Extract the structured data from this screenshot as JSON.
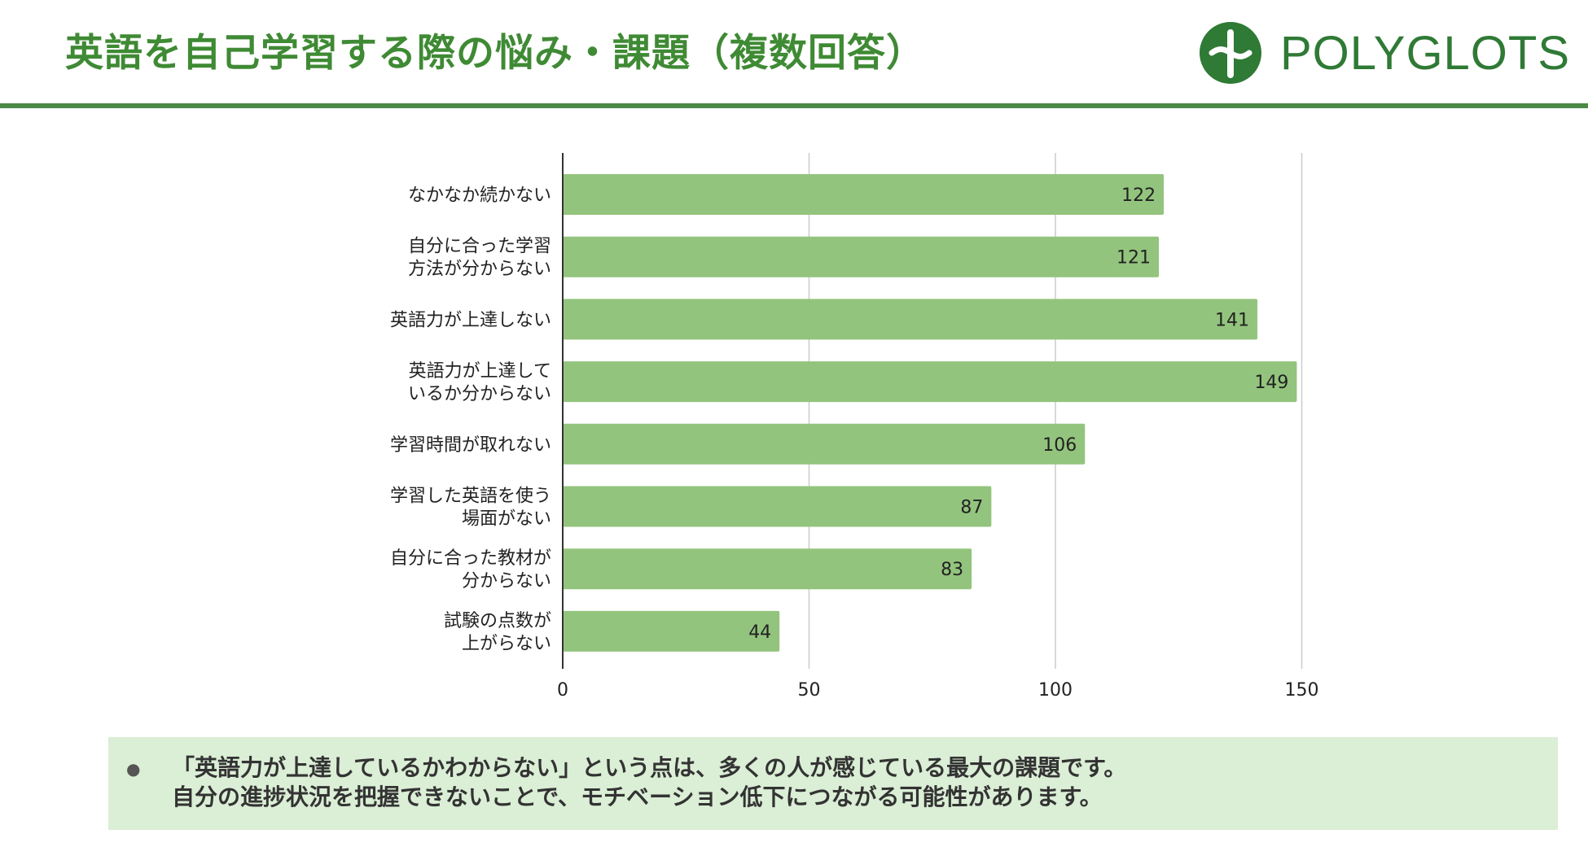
{
  "page": {
    "title": "英語を自己学習する際の悩み・課題（複数回答）",
    "logo_text": "POLYGLOTS",
    "colors": {
      "accent": "#3f8a34",
      "bar": "#93c47d",
      "note_bg": "#dbeed6",
      "rule": "#4a8a45"
    }
  },
  "chart_data": {
    "type": "bar",
    "orientation": "horizontal",
    "categories": [
      [
        "なかなか続かない"
      ],
      [
        "自分に合った学習",
        "方法が分からない"
      ],
      [
        "英語力が上達しない"
      ],
      [
        "英語力が上達して",
        "いるか分からない"
      ],
      [
        "学習時間が取れない"
      ],
      [
        "学習した英語を使う",
        "場面がない"
      ],
      [
        "自分に合った教材が",
        "分からない"
      ],
      [
        "試験の点数が",
        "上がらない"
      ]
    ],
    "values": [
      122,
      121,
      141,
      149,
      106,
      87,
      83,
      44
    ],
    "xlim": [
      0,
      180
    ],
    "xticks": [
      0,
      50,
      100,
      150
    ],
    "grid": true,
    "legend": "none"
  },
  "note": {
    "bullet": "●",
    "lines": [
      "「英語力が上達しているかわからない」という点は、多くの人が感じている最大の課題です。",
      "自分の進捗状況を把握できないことで、モチベーション低下につながる可能性があります。"
    ]
  }
}
